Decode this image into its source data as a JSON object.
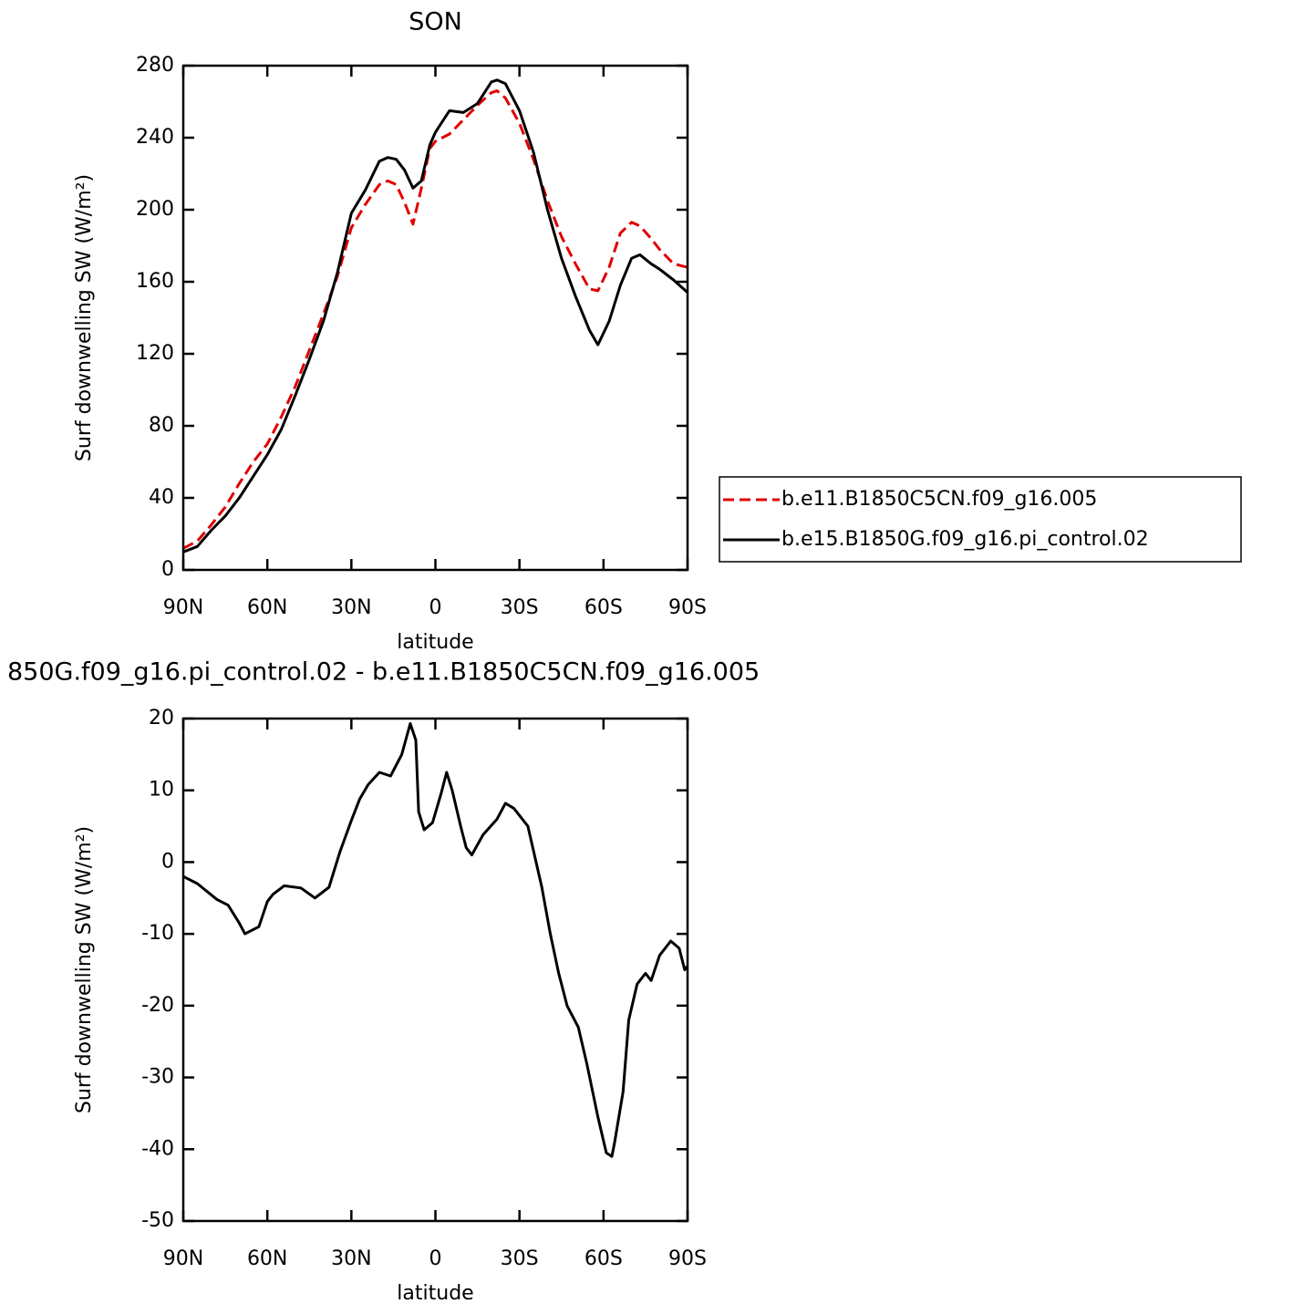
{
  "chart_data": [
    {
      "type": "line",
      "title": "SON",
      "xlabel": "latitude",
      "ylabel": "Surf downwelling SW (W/m²)",
      "x": [
        90,
        85,
        80,
        75,
        70,
        65,
        60,
        55,
        50,
        45,
        40,
        35,
        30,
        25,
        20,
        17,
        14,
        11,
        8,
        5,
        2,
        0,
        -5,
        -10,
        -15,
        -20,
        -22,
        -25,
        -30,
        -35,
        -40,
        -45,
        -50,
        -55,
        -58,
        -62,
        -66,
        -70,
        -73,
        -77,
        -80,
        -85,
        -90
      ],
      "series": [
        {
          "name": "b.e11.B1850C5CN.f09_g16.005",
          "color": "#e00000",
          "linestyle": "dashed",
          "values": [
            12,
            16,
            25,
            35,
            48,
            60,
            70,
            85,
            102,
            122,
            142,
            163,
            190,
            203,
            214,
            216,
            214,
            204,
            192,
            212,
            234,
            238,
            242,
            250,
            258,
            265,
            266,
            262,
            248,
            228,
            205,
            185,
            170,
            156,
            155,
            168,
            187,
            193,
            191,
            184,
            178,
            170,
            168
          ]
        },
        {
          "name": "b.e15.B1850G.f09_g16.pi_control.02",
          "color": "#000000",
          "linestyle": "solid",
          "values": [
            10,
            13,
            22,
            30,
            40,
            52,
            64,
            78,
            97,
            117,
            138,
            165,
            198,
            211,
            227,
            229,
            228,
            222,
            212,
            216,
            236,
            243,
            255,
            254,
            259,
            271,
            272,
            270,
            255,
            232,
            200,
            173,
            152,
            133,
            125,
            138,
            158,
            173,
            175,
            170,
            167,
            161,
            154
          ]
        }
      ],
      "xlim": [
        90,
        -90
      ],
      "xticks": [
        {
          "value": 90,
          "label": "90N"
        },
        {
          "value": 60,
          "label": "60N"
        },
        {
          "value": 30,
          "label": "30N"
        },
        0,
        {
          "value": -30,
          "label": "30S"
        },
        {
          "value": -60,
          "label": "60S"
        },
        {
          "value": -90,
          "label": "90S"
        }
      ],
      "ylim": [
        0,
        280
      ],
      "yticks": [
        0,
        40,
        80,
        120,
        160,
        200,
        240,
        280
      ],
      "legend": "right"
    },
    {
      "type": "line",
      "title": "850G.f09_g16.pi_control.02 - b.e11.B1850C5CN.f09_g16.005",
      "xlabel": "latitude",
      "ylabel": "Surf downwelling SW (W/m²)",
      "x": [
        90,
        85,
        78,
        74,
        70,
        68,
        63,
        60,
        58,
        54,
        48,
        43,
        38,
        34,
        30,
        27,
        24,
        20,
        16,
        12,
        9,
        7,
        6,
        4,
        1,
        -2,
        -4,
        -6,
        -9,
        -11,
        -13,
        -17,
        -22,
        -25,
        -28,
        -33,
        -38,
        -41,
        -44,
        -47,
        -51,
        -54,
        -58,
        -61,
        -63,
        -64,
        -67,
        -69,
        -72,
        -75,
        -77,
        -80,
        -84,
        -87,
        -89,
        -90
      ],
      "series": [
        {
          "name": null,
          "color": "#000000",
          "linestyle": "solid",
          "values": [
            -2,
            -3,
            -5.2,
            -6,
            -8.5,
            -10,
            -9,
            -5.5,
            -4.5,
            -3.3,
            -3.6,
            -5,
            -3.5,
            1.5,
            5.8,
            8.8,
            10.8,
            12.5,
            12,
            15,
            19.3,
            17,
            7,
            4.5,
            5.5,
            9.5,
            12.5,
            10,
            5,
            2,
            1,
            3.8,
            6,
            8.2,
            7.5,
            5,
            -3.5,
            -10,
            -15.5,
            -20,
            -23,
            -28,
            -35.5,
            -40.5,
            -41,
            -39,
            -32,
            -22,
            -17,
            -15.5,
            -16.5,
            -13,
            -11,
            -12,
            -15,
            -14.5
          ]
        }
      ],
      "xlim": [
        90,
        -90
      ],
      "xticks": [
        {
          "value": 90,
          "label": "90N"
        },
        {
          "value": 60,
          "label": "60N"
        },
        {
          "value": 30,
          "label": "30N"
        },
        0,
        {
          "value": -30,
          "label": "30S"
        },
        {
          "value": -60,
          "label": "60S"
        },
        {
          "value": -90,
          "label": "90S"
        }
      ],
      "ylim": [
        -50,
        20
      ],
      "yticks": [
        -50,
        -40,
        -30,
        -20,
        -10,
        0,
        10,
        20
      ]
    }
  ]
}
